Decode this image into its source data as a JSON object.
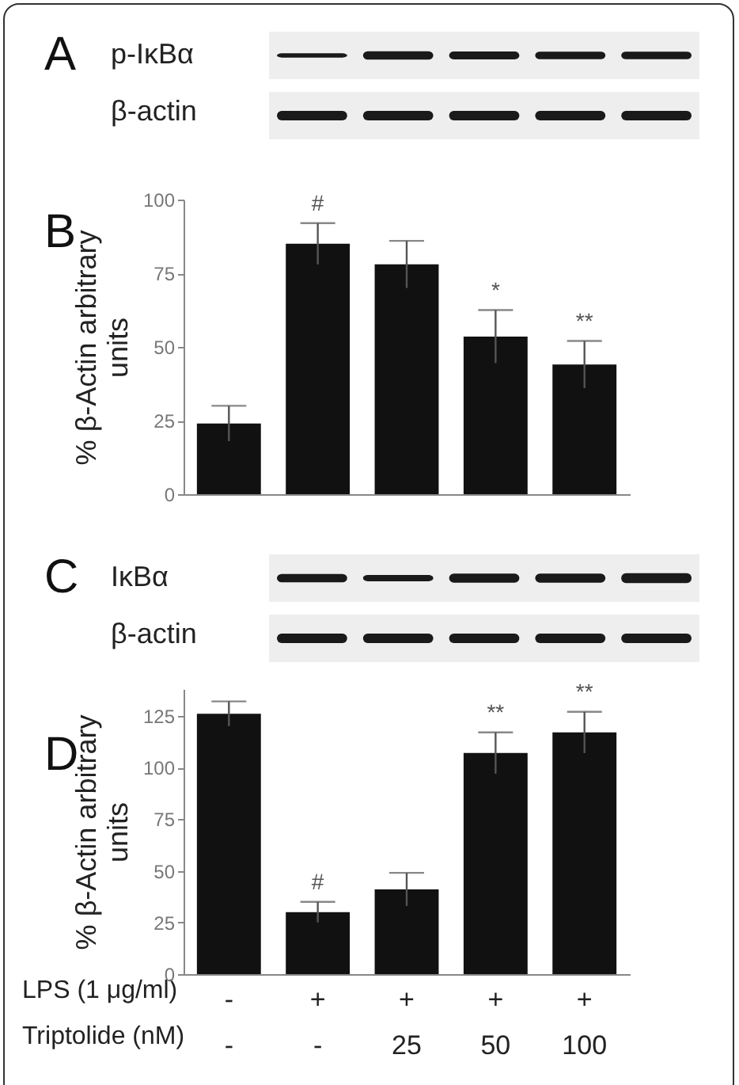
{
  "chart_data": [
    {
      "type": "bar",
      "ylabel": "% β-Actin arbitrary\nunits",
      "categories": [
        null,
        null,
        null,
        null,
        null
      ],
      "values": [
        24,
        85,
        78,
        53.5,
        44
      ],
      "errors": [
        6,
        7,
        8,
        9,
        8
      ],
      "color": "#111111",
      "value_labels": [
        null,
        "#",
        null,
        "*",
        "**"
      ],
      "ylim": [
        0,
        100
      ],
      "yticks": [
        0,
        25,
        50,
        75,
        100
      ],
      "grid": false,
      "annotations": [
        "A",
        "p-IκBα",
        "β-actin",
        "B"
      ]
    },
    {
      "type": "bar",
      "ylabel": "% β-Actin arbitrary\nunits",
      "categories": [
        "-\n-",
        "+\n-",
        "+\n25",
        "+\n50",
        "+\n100"
      ],
      "values": [
        126,
        30,
        41,
        107,
        117
      ],
      "errors": [
        6,
        5,
        8,
        10,
        10
      ],
      "color": "#111111",
      "value_labels": [
        null,
        "#",
        null,
        "**",
        "**"
      ],
      "ylim": [
        0,
        138
      ],
      "yticks": [
        0,
        25,
        50,
        75,
        100,
        125
      ],
      "grid": false,
      "annotations": [
        "C",
        "IκBα",
        "β-actin",
        "D",
        "LPS (1 μg/ml)",
        "Triptolide (nM)"
      ]
    }
  ]
}
